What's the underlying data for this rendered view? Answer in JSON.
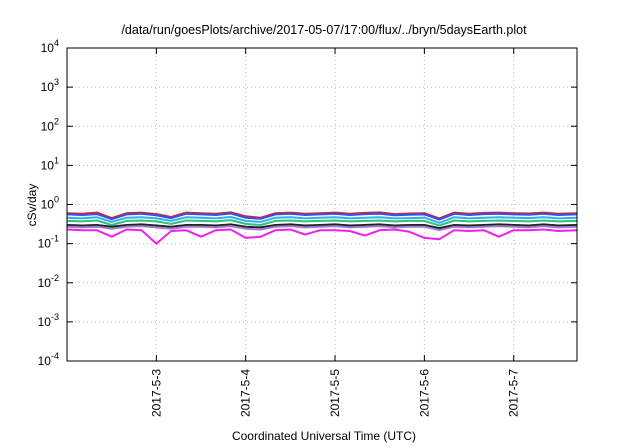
{
  "chart_data": {
    "type": "line",
    "title": "/data/run/goesPlots/archive/2017-05-07/17:00/flux/../bryn/5daysEarth.plot",
    "xlabel": "Coordinated Universal Time (UTC)",
    "ylabel": "cSv/day",
    "yscale": "log",
    "ylim": [
      0.0001,
      10000
    ],
    "xlim": [
      "2017-05-02T00:00",
      "2017-05-07T17:00"
    ],
    "grid": true,
    "x_ticks": [
      {
        "value": "2017-05-03T00:00",
        "label": "2017-5-3"
      },
      {
        "value": "2017-05-04T00:00",
        "label": "2017-5-4"
      },
      {
        "value": "2017-05-05T00:00",
        "label": "2017-5-5"
      },
      {
        "value": "2017-05-06T00:00",
        "label": "2017-5-6"
      },
      {
        "value": "2017-05-07T00:00",
        "label": "2017-5-7"
      }
    ],
    "y_ticks": [
      {
        "value": 10000,
        "base": "10",
        "exp": "4"
      },
      {
        "value": 1000,
        "base": "10",
        "exp": "3"
      },
      {
        "value": 100,
        "base": "10",
        "exp": "2"
      },
      {
        "value": 10,
        "base": "10",
        "exp": "1"
      },
      {
        "value": 1,
        "base": "10",
        "exp": "0"
      },
      {
        "value": 0.1,
        "base": "10",
        "exp": "-1"
      },
      {
        "value": 0.01,
        "base": "10",
        "exp": "-2"
      },
      {
        "value": 0.001,
        "base": "10",
        "exp": "-3"
      },
      {
        "value": 0.0001,
        "base": "10",
        "exp": "-4"
      }
    ],
    "x": [
      "2017-05-02T00:00",
      "2017-05-02T04:00",
      "2017-05-02T08:00",
      "2017-05-02T12:00",
      "2017-05-02T16:00",
      "2017-05-02T20:00",
      "2017-05-03T00:00",
      "2017-05-03T04:00",
      "2017-05-03T08:00",
      "2017-05-03T12:00",
      "2017-05-03T16:00",
      "2017-05-03T20:00",
      "2017-05-04T00:00",
      "2017-05-04T04:00",
      "2017-05-04T08:00",
      "2017-05-04T12:00",
      "2017-05-04T16:00",
      "2017-05-04T20:00",
      "2017-05-05T00:00",
      "2017-05-05T04:00",
      "2017-05-05T08:00",
      "2017-05-05T12:00",
      "2017-05-05T16:00",
      "2017-05-05T20:00",
      "2017-05-06T00:00",
      "2017-05-06T04:00",
      "2017-05-06T08:00",
      "2017-05-06T12:00",
      "2017-05-06T16:00",
      "2017-05-06T20:00",
      "2017-05-07T00:00",
      "2017-05-07T04:00",
      "2017-05-07T08:00",
      "2017-05-07T12:00",
      "2017-05-07T17:00"
    ],
    "series": [
      {
        "color": "#e0202a",
        "values": [
          0.6,
          0.58,
          0.62,
          0.45,
          0.6,
          0.62,
          0.57,
          0.48,
          0.62,
          0.6,
          0.58,
          0.63,
          0.5,
          0.46,
          0.6,
          0.62,
          0.58,
          0.6,
          0.62,
          0.58,
          0.61,
          0.63,
          0.57,
          0.59,
          0.6,
          0.44,
          0.62,
          0.58,
          0.61,
          0.62,
          0.6,
          0.59,
          0.62,
          0.58,
          0.6
        ]
      },
      {
        "color": "#3050f0",
        "values": [
          0.56,
          0.54,
          0.57,
          0.42,
          0.56,
          0.58,
          0.53,
          0.45,
          0.58,
          0.56,
          0.54,
          0.59,
          0.46,
          0.43,
          0.56,
          0.58,
          0.54,
          0.56,
          0.58,
          0.54,
          0.57,
          0.58,
          0.53,
          0.55,
          0.56,
          0.41,
          0.58,
          0.54,
          0.57,
          0.58,
          0.56,
          0.55,
          0.58,
          0.54,
          0.56
        ]
      },
      {
        "color": "#2bb3f0",
        "values": [
          0.46,
          0.44,
          0.47,
          0.36,
          0.46,
          0.47,
          0.44,
          0.38,
          0.47,
          0.46,
          0.44,
          0.48,
          0.38,
          0.36,
          0.46,
          0.47,
          0.44,
          0.46,
          0.47,
          0.44,
          0.46,
          0.47,
          0.44,
          0.45,
          0.46,
          0.34,
          0.47,
          0.44,
          0.46,
          0.47,
          0.46,
          0.45,
          0.47,
          0.44,
          0.46
        ]
      },
      {
        "color": "#30c080",
        "values": [
          0.38,
          0.37,
          0.39,
          0.3,
          0.38,
          0.39,
          0.37,
          0.32,
          0.39,
          0.38,
          0.37,
          0.4,
          0.32,
          0.3,
          0.38,
          0.39,
          0.37,
          0.38,
          0.39,
          0.37,
          0.38,
          0.39,
          0.37,
          0.38,
          0.38,
          0.29,
          0.39,
          0.37,
          0.38,
          0.39,
          0.38,
          0.37,
          0.39,
          0.37,
          0.38
        ]
      },
      {
        "color": "#222222",
        "values": [
          0.3,
          0.29,
          0.3,
          0.27,
          0.3,
          0.31,
          0.29,
          0.27,
          0.3,
          0.3,
          0.29,
          0.31,
          0.27,
          0.26,
          0.3,
          0.31,
          0.29,
          0.3,
          0.31,
          0.29,
          0.3,
          0.31,
          0.29,
          0.3,
          0.3,
          0.25,
          0.3,
          0.29,
          0.3,
          0.31,
          0.3,
          0.29,
          0.31,
          0.29,
          0.3
        ]
      },
      {
        "color": "#a07ad0",
        "values": [
          0.27,
          0.26,
          0.27,
          0.24,
          0.27,
          0.28,
          0.26,
          0.24,
          0.27,
          0.27,
          0.26,
          0.28,
          0.24,
          0.23,
          0.27,
          0.28,
          0.26,
          0.27,
          0.28,
          0.26,
          0.27,
          0.28,
          0.26,
          0.27,
          0.27,
          0.22,
          0.27,
          0.26,
          0.27,
          0.28,
          0.27,
          0.26,
          0.28,
          0.26,
          0.27
        ]
      },
      {
        "color": "#f020f0",
        "values": [
          0.23,
          0.22,
          0.22,
          0.15,
          0.23,
          0.22,
          0.1,
          0.21,
          0.22,
          0.15,
          0.22,
          0.23,
          0.14,
          0.15,
          0.22,
          0.23,
          0.17,
          0.22,
          0.22,
          0.21,
          0.16,
          0.22,
          0.23,
          0.2,
          0.14,
          0.13,
          0.22,
          0.21,
          0.22,
          0.15,
          0.22,
          0.22,
          0.23,
          0.21,
          0.22
        ]
      }
    ]
  }
}
